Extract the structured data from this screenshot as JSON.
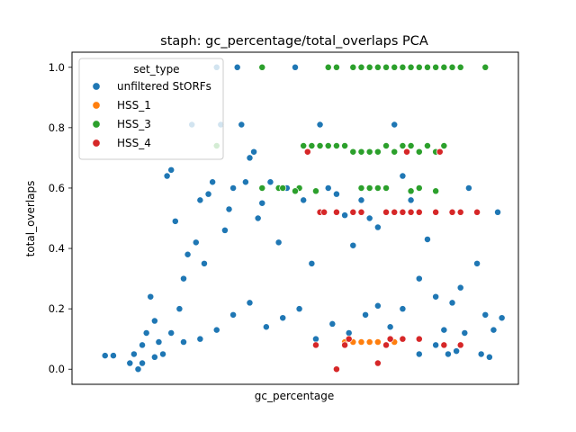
{
  "chart_data": {
    "type": "scatter",
    "title": "staph: gc_percentage/total_overlaps PCA",
    "xlabel": "gc_percentage",
    "ylabel": "total_overlaps",
    "ylim": [
      -0.05,
      1.05
    ],
    "yticks": [
      "0.0",
      "0.2",
      "0.4",
      "0.6",
      "0.8",
      "1.0"
    ],
    "xticks_visible": false,
    "grid": false,
    "legend": {
      "title": "set_type",
      "placement": "upper-left"
    },
    "series": [
      {
        "name": "unfiltered StORFs",
        "color": "#1f77b4",
        "points": [
          [
            0.04,
            0.045
          ],
          [
            0.06,
            0.045
          ],
          [
            0.1,
            0.02
          ],
          [
            0.11,
            0.05
          ],
          [
            0.12,
            0.0
          ],
          [
            0.13,
            0.08
          ],
          [
            0.14,
            0.12
          ],
          [
            0.15,
            0.24
          ],
          [
            0.16,
            0.16
          ],
          [
            0.17,
            0.09
          ],
          [
            0.18,
            0.05
          ],
          [
            0.19,
            0.64
          ],
          [
            0.2,
            0.66
          ],
          [
            0.21,
            0.49
          ],
          [
            0.22,
            0.2
          ],
          [
            0.23,
            0.3
          ],
          [
            0.24,
            0.38
          ],
          [
            0.25,
            0.81
          ],
          [
            0.26,
            0.42
          ],
          [
            0.27,
            0.56
          ],
          [
            0.28,
            0.35
          ],
          [
            0.29,
            0.58
          ],
          [
            0.3,
            0.62
          ],
          [
            0.31,
            1.0
          ],
          [
            0.32,
            0.81
          ],
          [
            0.33,
            0.46
          ],
          [
            0.34,
            0.53
          ],
          [
            0.35,
            0.6
          ],
          [
            0.36,
            1.0
          ],
          [
            0.37,
            0.81
          ],
          [
            0.38,
            0.62
          ],
          [
            0.39,
            0.7
          ],
          [
            0.4,
            0.72
          ],
          [
            0.41,
            0.5
          ],
          [
            0.42,
            0.55
          ],
          [
            0.44,
            0.62
          ],
          [
            0.46,
            0.42
          ],
          [
            0.48,
            0.6
          ],
          [
            0.5,
            1.0
          ],
          [
            0.52,
            0.56
          ],
          [
            0.54,
            0.35
          ],
          [
            0.56,
            0.81
          ],
          [
            0.58,
            0.6
          ],
          [
            0.6,
            0.58
          ],
          [
            0.62,
            0.51
          ],
          [
            0.64,
            0.41
          ],
          [
            0.66,
            0.56
          ],
          [
            0.68,
            0.5
          ],
          [
            0.7,
            0.47
          ],
          [
            0.72,
            0.6
          ],
          [
            0.74,
            0.81
          ],
          [
            0.76,
            0.64
          ],
          [
            0.78,
            0.56
          ],
          [
            0.8,
            0.3
          ],
          [
            0.82,
            0.43
          ],
          [
            0.84,
            0.24
          ],
          [
            0.86,
            0.13
          ],
          [
            0.88,
            0.22
          ],
          [
            0.9,
            0.27
          ],
          [
            0.92,
            0.6
          ],
          [
            0.94,
            0.35
          ],
          [
            0.96,
            0.18
          ],
          [
            0.97,
            0.04
          ],
          [
            0.98,
            0.13
          ],
          [
            0.99,
            0.52
          ],
          [
            1.0,
            0.17
          ],
          [
            0.95,
            0.05
          ],
          [
            0.91,
            0.12
          ],
          [
            0.89,
            0.06
          ],
          [
            0.87,
            0.05
          ],
          [
            0.84,
            0.08
          ],
          [
            0.8,
            0.05
          ],
          [
            0.76,
            0.2
          ],
          [
            0.73,
            0.14
          ],
          [
            0.7,
            0.21
          ],
          [
            0.67,
            0.18
          ],
          [
            0.63,
            0.12
          ],
          [
            0.59,
            0.15
          ],
          [
            0.55,
            0.1
          ],
          [
            0.51,
            0.2
          ],
          [
            0.47,
            0.17
          ],
          [
            0.43,
            0.14
          ],
          [
            0.39,
            0.22
          ],
          [
            0.35,
            0.18
          ],
          [
            0.31,
            0.13
          ],
          [
            0.27,
            0.1
          ],
          [
            0.23,
            0.09
          ],
          [
            0.2,
            0.12
          ],
          [
            0.16,
            0.04
          ],
          [
            0.13,
            0.02
          ]
        ]
      },
      {
        "name": "HSS_1",
        "color": "#ff7f0e",
        "points": [
          [
            0.62,
            0.09
          ],
          [
            0.64,
            0.09
          ],
          [
            0.66,
            0.09
          ],
          [
            0.68,
            0.09
          ],
          [
            0.7,
            0.09
          ],
          [
            0.74,
            0.09
          ]
        ]
      },
      {
        "name": "HSS_3",
        "color": "#2ca02c",
        "points": [
          [
            0.31,
            0.74
          ],
          [
            0.42,
            0.6
          ],
          [
            0.46,
            0.6
          ],
          [
            0.47,
            0.6
          ],
          [
            0.51,
            0.6
          ],
          [
            0.52,
            0.74
          ],
          [
            0.54,
            0.74
          ],
          [
            0.56,
            0.74
          ],
          [
            0.58,
            0.74
          ],
          [
            0.6,
            0.74
          ],
          [
            0.62,
            0.74
          ],
          [
            0.64,
            0.72
          ],
          [
            0.66,
            0.72
          ],
          [
            0.68,
            0.72
          ],
          [
            0.7,
            0.72
          ],
          [
            0.72,
            0.74
          ],
          [
            0.74,
            0.72
          ],
          [
            0.76,
            0.74
          ],
          [
            0.78,
            0.74
          ],
          [
            0.8,
            0.72
          ],
          [
            0.82,
            0.74
          ],
          [
            0.84,
            0.72
          ],
          [
            0.86,
            0.74
          ],
          [
            0.66,
            0.6
          ],
          [
            0.68,
            0.6
          ],
          [
            0.7,
            0.6
          ],
          [
            0.72,
            0.6
          ],
          [
            0.78,
            0.59
          ],
          [
            0.8,
            0.6
          ],
          [
            0.84,
            0.59
          ],
          [
            0.5,
            0.59
          ],
          [
            0.55,
            0.59
          ],
          [
            0.42,
            1.0
          ],
          [
            0.58,
            1.0
          ],
          [
            0.6,
            1.0
          ],
          [
            0.64,
            1.0
          ],
          [
            0.66,
            1.0
          ],
          [
            0.68,
            1.0
          ],
          [
            0.7,
            1.0
          ],
          [
            0.72,
            1.0
          ],
          [
            0.74,
            1.0
          ],
          [
            0.76,
            1.0
          ],
          [
            0.78,
            1.0
          ],
          [
            0.8,
            1.0
          ],
          [
            0.82,
            1.0
          ],
          [
            0.84,
            1.0
          ],
          [
            0.86,
            1.0
          ],
          [
            0.88,
            1.0
          ],
          [
            0.9,
            1.0
          ],
          [
            0.96,
            1.0
          ]
        ]
      },
      {
        "name": "HSS_4",
        "color": "#d62728",
        "points": [
          [
            0.53,
            0.72
          ],
          [
            0.56,
            0.52
          ],
          [
            0.57,
            0.52
          ],
          [
            0.6,
            0.52
          ],
          [
            0.64,
            0.52
          ],
          [
            0.66,
            0.52
          ],
          [
            0.72,
            0.52
          ],
          [
            0.74,
            0.52
          ],
          [
            0.76,
            0.52
          ],
          [
            0.78,
            0.52
          ],
          [
            0.8,
            0.52
          ],
          [
            0.84,
            0.52
          ],
          [
            0.88,
            0.52
          ],
          [
            0.94,
            0.52
          ],
          [
            0.77,
            0.72
          ],
          [
            0.85,
            0.72
          ],
          [
            0.9,
            0.52
          ],
          [
            0.55,
            0.08
          ],
          [
            0.6,
            0.0
          ],
          [
            0.62,
            0.08
          ],
          [
            0.63,
            0.1
          ],
          [
            0.7,
            0.02
          ],
          [
            0.72,
            0.08
          ],
          [
            0.73,
            0.1
          ],
          [
            0.76,
            0.1
          ],
          [
            0.8,
            0.1
          ],
          [
            0.86,
            0.08
          ],
          [
            0.9,
            0.08
          ]
        ]
      }
    ]
  }
}
